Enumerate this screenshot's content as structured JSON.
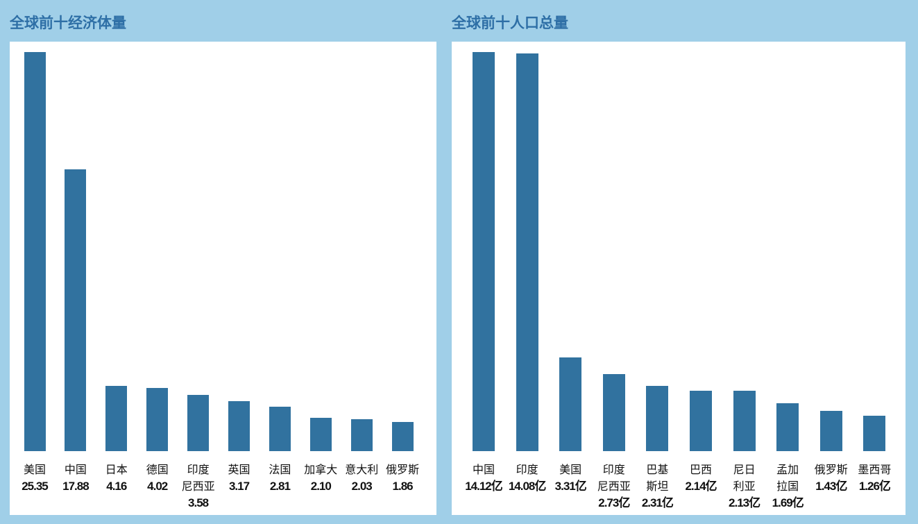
{
  "chart_data": [
    {
      "type": "bar",
      "title": "全球前十经济体量",
      "color": "#31729f",
      "categories": [
        "美国",
        "中国",
        "日本",
        "德国",
        "印度\n尼西亚",
        "英国",
        "法国",
        "加拿大",
        "意大利",
        "俄罗斯"
      ],
      "values": [
        25.35,
        17.88,
        4.16,
        4.02,
        3.58,
        3.17,
        2.81,
        2.1,
        2.03,
        1.86
      ],
      "value_labels": [
        "25.35",
        "17.88",
        "4.16",
        "4.02",
        "3.58",
        "3.17",
        "2.81",
        "2.10",
        "2.03",
        "1.86"
      ]
    },
    {
      "type": "bar",
      "title": "全球前十人口总量",
      "color": "#31729f",
      "categories": [
        "中国",
        "印度",
        "美国",
        "印度\n尼西亚",
        "巴基\n斯坦",
        "巴西",
        "尼日\n利亚",
        "孟加\n拉国",
        "俄罗斯",
        "墨西哥"
      ],
      "values": [
        14.12,
        14.08,
        3.31,
        2.73,
        2.31,
        2.14,
        2.13,
        1.69,
        1.43,
        1.26
      ],
      "value_labels": [
        "14.12亿",
        "14.08亿",
        "3.31亿",
        "2.73亿",
        "2.31亿",
        "2.14亿",
        "2.13亿",
        "1.69亿",
        "1.43亿",
        "1.26亿"
      ]
    }
  ]
}
